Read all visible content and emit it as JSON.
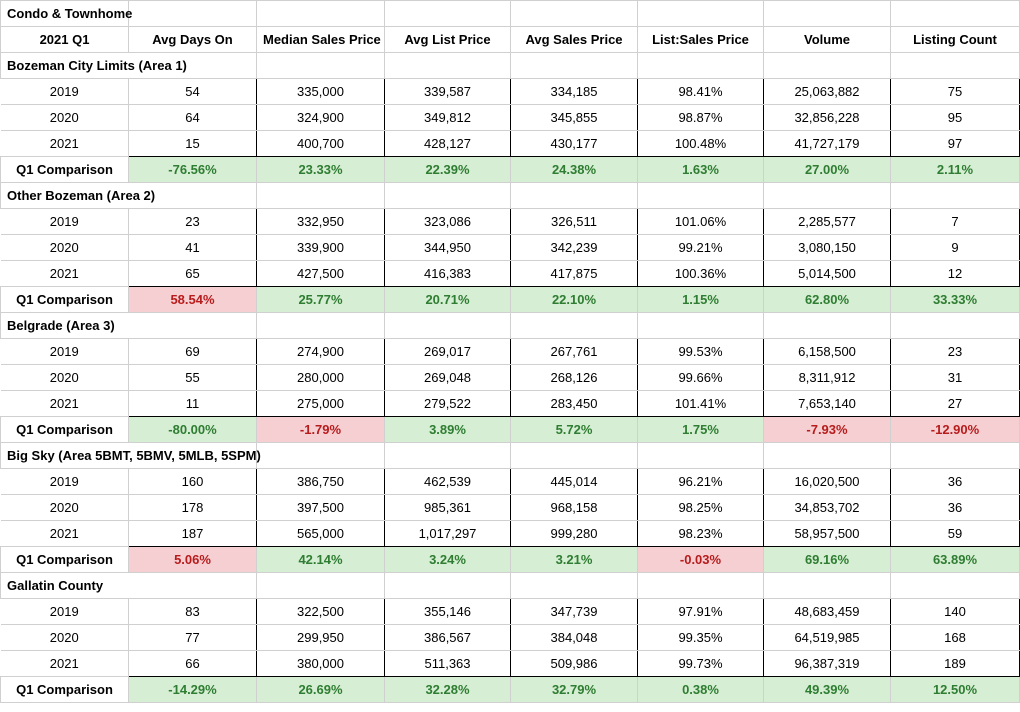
{
  "title": "Condo & Townhome",
  "header": [
    "2021 Q1",
    "Avg Days On",
    "Median Sales Price",
    "Avg List Price",
    "Avg Sales Price",
    "List:Sales Price",
    "Volume",
    "Listing Count"
  ],
  "comparison_label": "Q1 Comparison",
  "sections": [
    {
      "name": "Bozeman City Limits (Area 1)",
      "rows": [
        {
          "year": "2019",
          "cells": [
            "54",
            "335,000",
            "339,587",
            "334,185",
            "98.41%",
            "25,063,882",
            "75"
          ]
        },
        {
          "year": "2020",
          "cells": [
            "64",
            "324,900",
            "349,812",
            "345,855",
            "98.87%",
            "32,856,228",
            "95"
          ]
        },
        {
          "year": "2021",
          "cells": [
            "15",
            "400,700",
            "428,127",
            "430,177",
            "100.48%",
            "41,727,179",
            "97"
          ]
        }
      ],
      "comparison": [
        "-76.56%",
        "23.33%",
        "22.39%",
        "24.38%",
        "1.63%",
        "27.00%",
        "2.11%"
      ],
      "comparison_status": [
        "pos",
        "pos",
        "pos",
        "pos",
        "pos",
        "pos",
        "pos"
      ]
    },
    {
      "name": "Other Bozeman (Area 2)",
      "rows": [
        {
          "year": "2019",
          "cells": [
            "23",
            "332,950",
            "323,086",
            "326,511",
            "101.06%",
            "2,285,577",
            "7"
          ]
        },
        {
          "year": "2020",
          "cells": [
            "41",
            "339,900",
            "344,950",
            "342,239",
            "99.21%",
            "3,080,150",
            "9"
          ]
        },
        {
          "year": "2021",
          "cells": [
            "65",
            "427,500",
            "416,383",
            "417,875",
            "100.36%",
            "5,014,500",
            "12"
          ]
        }
      ],
      "comparison": [
        "58.54%",
        "25.77%",
        "20.71%",
        "22.10%",
        "1.15%",
        "62.80%",
        "33.33%"
      ],
      "comparison_status": [
        "neg",
        "pos",
        "pos",
        "pos",
        "pos",
        "pos",
        "pos"
      ]
    },
    {
      "name": "Belgrade (Area 3)",
      "rows": [
        {
          "year": "2019",
          "cells": [
            "69",
            "274,900",
            "269,017",
            "267,761",
            "99.53%",
            "6,158,500",
            "23"
          ]
        },
        {
          "year": "2020",
          "cells": [
            "55",
            "280,000",
            "269,048",
            "268,126",
            "99.66%",
            "8,311,912",
            "31"
          ]
        },
        {
          "year": "2021",
          "cells": [
            "11",
            "275,000",
            "279,522",
            "283,450",
            "101.41%",
            "7,653,140",
            "27"
          ]
        }
      ],
      "comparison": [
        "-80.00%",
        "-1.79%",
        "3.89%",
        "5.72%",
        "1.75%",
        "-7.93%",
        "-12.90%"
      ],
      "comparison_status": [
        "pos",
        "neg",
        "pos",
        "pos",
        "pos",
        "neg",
        "neg"
      ]
    },
    {
      "name": "Big Sky (Area 5BMT, 5BMV, 5MLB, 5SPM)",
      "rows": [
        {
          "year": "2019",
          "cells": [
            "160",
            "386,750",
            "462,539",
            "445,014",
            "96.21%",
            "16,020,500",
            "36"
          ]
        },
        {
          "year": "2020",
          "cells": [
            "178",
            "397,500",
            "985,361",
            "968,158",
            "98.25%",
            "34,853,702",
            "36"
          ]
        },
        {
          "year": "2021",
          "cells": [
            "187",
            "565,000",
            "1,017,297",
            "999,280",
            "98.23%",
            "58,957,500",
            "59"
          ]
        }
      ],
      "comparison": [
        "5.06%",
        "42.14%",
        "3.24%",
        "3.21%",
        "-0.03%",
        "69.16%",
        "63.89%"
      ],
      "comparison_status": [
        "neg",
        "pos",
        "pos",
        "pos",
        "neg",
        "pos",
        "pos"
      ]
    },
    {
      "name": "Gallatin County",
      "rows": [
        {
          "year": "2019",
          "cells": [
            "83",
            "322,500",
            "355,146",
            "347,739",
            "97.91%",
            "48,683,459",
            "140"
          ]
        },
        {
          "year": "2020",
          "cells": [
            "77",
            "299,950",
            "386,567",
            "384,048",
            "99.35%",
            "64,519,985",
            "168"
          ]
        },
        {
          "year": "2021",
          "cells": [
            "66",
            "380,000",
            "511,363",
            "509,986",
            "99.73%",
            "96,387,319",
            "189"
          ]
        }
      ],
      "comparison": [
        "-14.29%",
        "26.69%",
        "32.28%",
        "32.79%",
        "0.38%",
        "49.39%",
        "12.50%"
      ],
      "comparison_status": [
        "pos",
        "pos",
        "pos",
        "pos",
        "pos",
        "pos",
        "pos"
      ]
    }
  ]
}
